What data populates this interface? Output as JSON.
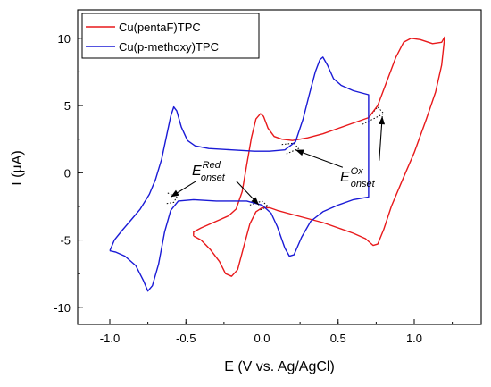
{
  "chart_data": {
    "type": "line",
    "xlabel": "E (V vs. Ag/AgCl)",
    "ylabel": "I (µA)",
    "xlim": [
      -1.2,
      1.3
    ],
    "ylim": [
      -11,
      12
    ],
    "xticks": [
      -1.0,
      -0.5,
      0.0,
      0.5,
      1.0
    ],
    "xtick_labels": [
      "-1.0",
      "-0.5",
      "0.0",
      "0.5",
      "1.0"
    ],
    "yticks": [
      -10,
      -5,
      0,
      5,
      10
    ],
    "ytick_labels": [
      "-10",
      "-5",
      "0",
      "5",
      "10"
    ],
    "grid": false,
    "legend_position": "top-left",
    "series": [
      {
        "name": "Cu(pentaF)TPC",
        "color": "#e8191b",
        "points": [
          [
            -0.45,
            -4.7
          ],
          [
            -0.45,
            -4.4
          ],
          [
            -0.4,
            -4.1
          ],
          [
            -0.34,
            -3.8
          ],
          [
            -0.28,
            -3.5
          ],
          [
            -0.22,
            -3.2
          ],
          [
            -0.17,
            -2.7
          ],
          [
            -0.13,
            -1.4
          ],
          [
            -0.1,
            0.6
          ],
          [
            -0.07,
            2.6
          ],
          [
            -0.04,
            4.0
          ],
          [
            -0.01,
            4.4
          ],
          [
            0.01,
            4.2
          ],
          [
            0.04,
            3.3
          ],
          [
            0.08,
            2.7
          ],
          [
            0.13,
            2.5
          ],
          [
            0.2,
            2.4
          ],
          [
            0.3,
            2.6
          ],
          [
            0.4,
            2.9
          ],
          [
            0.5,
            3.3
          ],
          [
            0.6,
            3.7
          ],
          [
            0.7,
            4.1
          ],
          [
            0.76,
            5.0
          ],
          [
            0.82,
            6.8
          ],
          [
            0.88,
            8.6
          ],
          [
            0.93,
            9.7
          ],
          [
            0.98,
            10.0
          ],
          [
            1.04,
            9.9
          ],
          [
            1.12,
            9.6
          ],
          [
            1.18,
            9.7
          ],
          [
            1.2,
            10.1
          ],
          [
            1.18,
            8.0
          ],
          [
            1.14,
            6.0
          ],
          [
            1.08,
            4.0
          ],
          [
            1.0,
            1.5
          ],
          [
            0.92,
            -0.6
          ],
          [
            0.85,
            -2.5
          ],
          [
            0.8,
            -4.2
          ],
          [
            0.76,
            -5.3
          ],
          [
            0.73,
            -5.4
          ],
          [
            0.68,
            -4.9
          ],
          [
            0.6,
            -4.5
          ],
          [
            0.5,
            -4.1
          ],
          [
            0.4,
            -3.7
          ],
          [
            0.3,
            -3.4
          ],
          [
            0.2,
            -3.1
          ],
          [
            0.1,
            -2.8
          ],
          [
            0.05,
            -2.6
          ],
          [
            0.0,
            -2.6
          ],
          [
            -0.04,
            -2.9
          ],
          [
            -0.08,
            -3.8
          ],
          [
            -0.12,
            -5.5
          ],
          [
            -0.16,
            -7.2
          ],
          [
            -0.2,
            -7.7
          ],
          [
            -0.24,
            -7.5
          ],
          [
            -0.28,
            -6.6
          ],
          [
            -0.34,
            -5.7
          ],
          [
            -0.4,
            -5.0
          ],
          [
            -0.45,
            -4.7
          ]
        ]
      },
      {
        "name": "Cu(p-methoxy)TPC",
        "color": "#1a1ad6",
        "points": [
          [
            -1.0,
            -5.8
          ],
          [
            -0.97,
            -5.0
          ],
          [
            -0.92,
            -4.3
          ],
          [
            -0.86,
            -3.5
          ],
          [
            -0.8,
            -2.7
          ],
          [
            -0.74,
            -1.6
          ],
          [
            -0.7,
            -0.5
          ],
          [
            -0.66,
            1.0
          ],
          [
            -0.63,
            2.6
          ],
          [
            -0.6,
            4.2
          ],
          [
            -0.58,
            4.9
          ],
          [
            -0.56,
            4.6
          ],
          [
            -0.53,
            3.4
          ],
          [
            -0.49,
            2.4
          ],
          [
            -0.44,
            2.0
          ],
          [
            -0.35,
            1.8
          ],
          [
            -0.2,
            1.7
          ],
          [
            -0.05,
            1.6
          ],
          [
            0.05,
            1.6
          ],
          [
            0.15,
            1.7
          ],
          [
            0.22,
            2.3
          ],
          [
            0.27,
            4.0
          ],
          [
            0.31,
            5.8
          ],
          [
            0.35,
            7.5
          ],
          [
            0.38,
            8.4
          ],
          [
            0.4,
            8.6
          ],
          [
            0.43,
            8.0
          ],
          [
            0.47,
            7.0
          ],
          [
            0.52,
            6.5
          ],
          [
            0.6,
            6.1
          ],
          [
            0.7,
            5.8
          ],
          [
            0.7,
            -1.8
          ],
          [
            0.6,
            -2.0
          ],
          [
            0.5,
            -2.4
          ],
          [
            0.4,
            -2.9
          ],
          [
            0.32,
            -3.6
          ],
          [
            0.26,
            -4.8
          ],
          [
            0.21,
            -6.1
          ],
          [
            0.18,
            -6.2
          ],
          [
            0.15,
            -5.6
          ],
          [
            0.1,
            -4.0
          ],
          [
            0.06,
            -3.0
          ],
          [
            0.0,
            -2.4
          ],
          [
            -0.1,
            -2.1
          ],
          [
            -0.3,
            -2.1
          ],
          [
            -0.45,
            -2.0
          ],
          [
            -0.55,
            -2.1
          ],
          [
            -0.6,
            -2.8
          ],
          [
            -0.64,
            -4.4
          ],
          [
            -0.68,
            -6.8
          ],
          [
            -0.72,
            -8.4
          ],
          [
            -0.75,
            -8.8
          ],
          [
            -0.78,
            -8.0
          ],
          [
            -0.83,
            -6.9
          ],
          [
            -0.9,
            -6.2
          ],
          [
            -0.96,
            -5.9
          ],
          [
            -1.0,
            -5.8
          ]
        ]
      }
    ],
    "onset_guides": [
      [
        [
          -0.08,
          -2.4
        ],
        [
          0.0,
          -2.1
        ],
        [
          0.04,
          -2.5
        ],
        [
          -0.02,
          -2.8
        ]
      ],
      [
        [
          -0.62,
          -1.5
        ],
        [
          -0.56,
          -1.8
        ],
        [
          -0.58,
          -2.2
        ],
        [
          -0.63,
          -2.3
        ]
      ],
      [
        [
          0.16,
          1.4
        ],
        [
          0.24,
          1.8
        ],
        [
          0.21,
          2.2
        ],
        [
          0.13,
          2.1
        ]
      ],
      [
        [
          0.66,
          3.6
        ],
        [
          0.8,
          4.4
        ],
        [
          0.76,
          4.9
        ],
        [
          0.7,
          4.1
        ]
      ]
    ],
    "annotations": {
      "red_label": {
        "main": "E",
        "sup": "Red",
        "sub": "onset"
      },
      "ox_label": {
        "main": "E",
        "sup": "Ox",
        "sub": "onset"
      }
    },
    "annotation_arrows": [
      {
        "from": [
          -0.43,
          -0.6
        ],
        "to": [
          -0.6,
          -1.8
        ]
      },
      {
        "from": [
          -0.17,
          -0.6
        ],
        "to": [
          -0.02,
          -2.4
        ]
      },
      {
        "from": [
          0.53,
          0.4
        ],
        "to": [
          0.22,
          1.7
        ]
      },
      {
        "from": [
          0.77,
          0.9
        ],
        "to": [
          0.79,
          4.2
        ]
      }
    ]
  }
}
